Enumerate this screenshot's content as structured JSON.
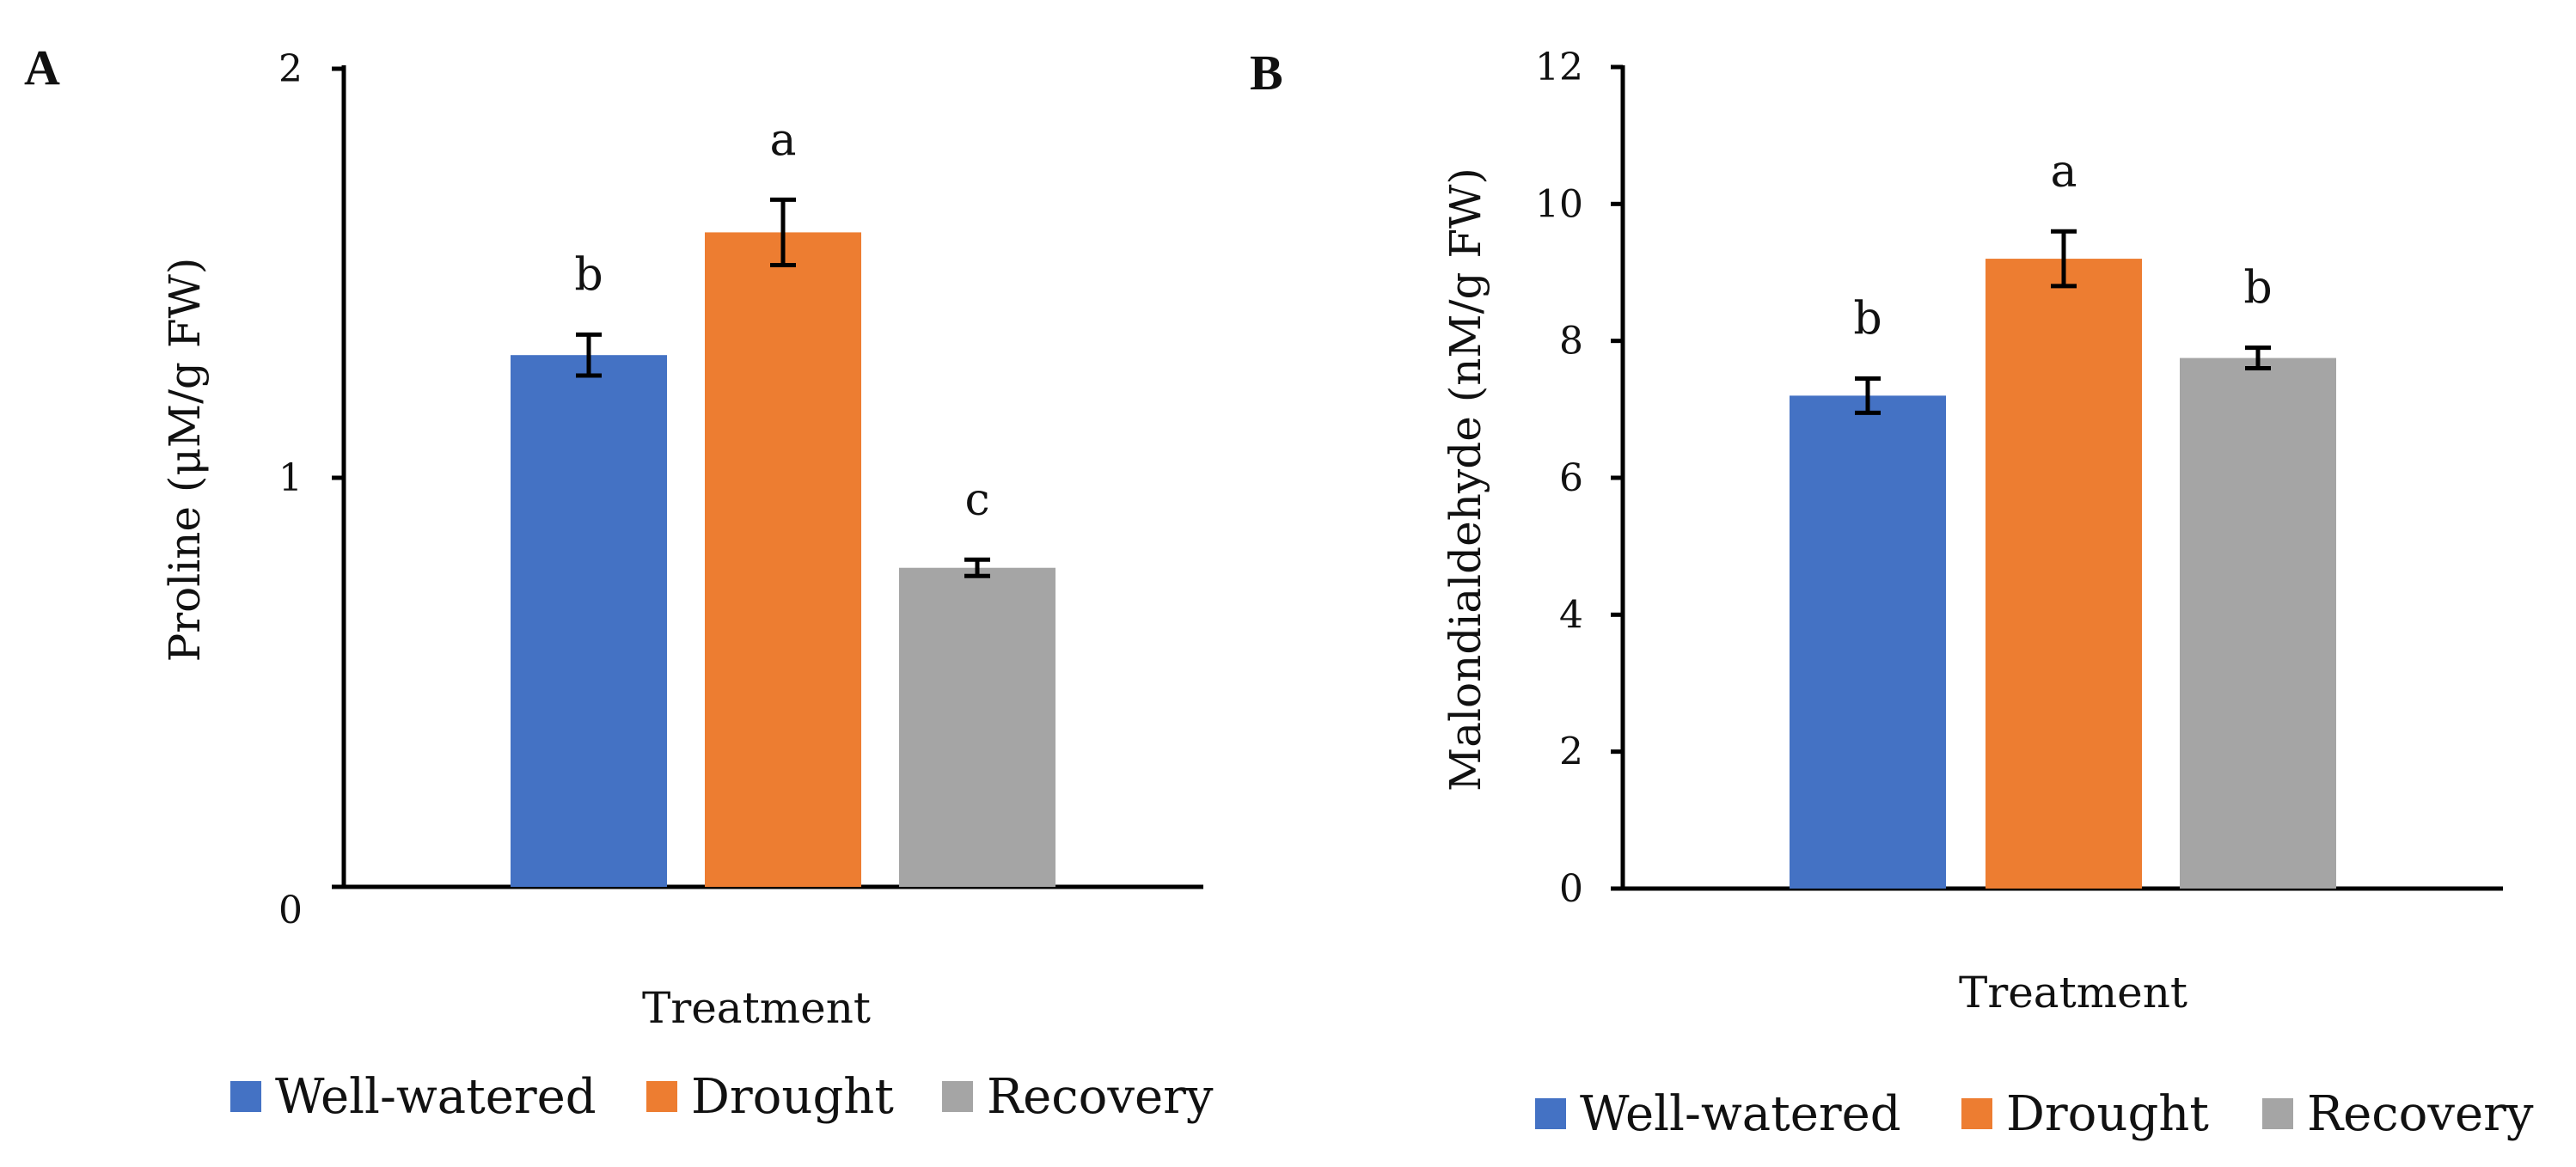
{
  "colors": {
    "well_watered": "#4472C4",
    "drought": "#ED7D31",
    "recovery": "#A5A5A5"
  },
  "chart_data": [
    {
      "type": "bar",
      "panel_label": "A",
      "title": "",
      "xlabel": "Treatment",
      "ylabel": "Proline (μM/g FW)",
      "ylim": [
        0,
        2
      ],
      "yticks": [
        "0",
        "1",
        "2"
      ],
      "grid": false,
      "legend": "bottom",
      "categories": [
        "Treatment"
      ],
      "series": [
        {
          "name": "Well-watered",
          "color_key": "well_watered",
          "values": [
            1.3
          ],
          "error": [
            0.05
          ],
          "letter": "b"
        },
        {
          "name": "Drought",
          "color_key": "drought",
          "values": [
            1.6
          ],
          "error": [
            0.08
          ],
          "letter": "a"
        },
        {
          "name": "Recovery",
          "color_key": "recovery",
          "values": [
            0.78
          ],
          "error": [
            0.02
          ],
          "letter": "c"
        }
      ]
    },
    {
      "type": "bar",
      "panel_label": "B",
      "title": "",
      "xlabel": "Treatment",
      "ylabel": "Malondialdehyde (nM/g FW)",
      "ylim": [
        0,
        12
      ],
      "yticks": [
        "0",
        "2",
        "4",
        "6",
        "8",
        "10",
        "12"
      ],
      "grid": false,
      "legend": "bottom",
      "categories": [
        "Treatment"
      ],
      "series": [
        {
          "name": "Well-watered",
          "color_key": "well_watered",
          "values": [
            7.2
          ],
          "error": [
            0.25
          ],
          "letter": "b"
        },
        {
          "name": "Drought",
          "color_key": "drought",
          "values": [
            9.2
          ],
          "error": [
            0.4
          ],
          "letter": "a"
        },
        {
          "name": "Recovery",
          "color_key": "recovery",
          "values": [
            7.75
          ],
          "error": [
            0.15
          ],
          "letter": "b"
        }
      ]
    }
  ]
}
